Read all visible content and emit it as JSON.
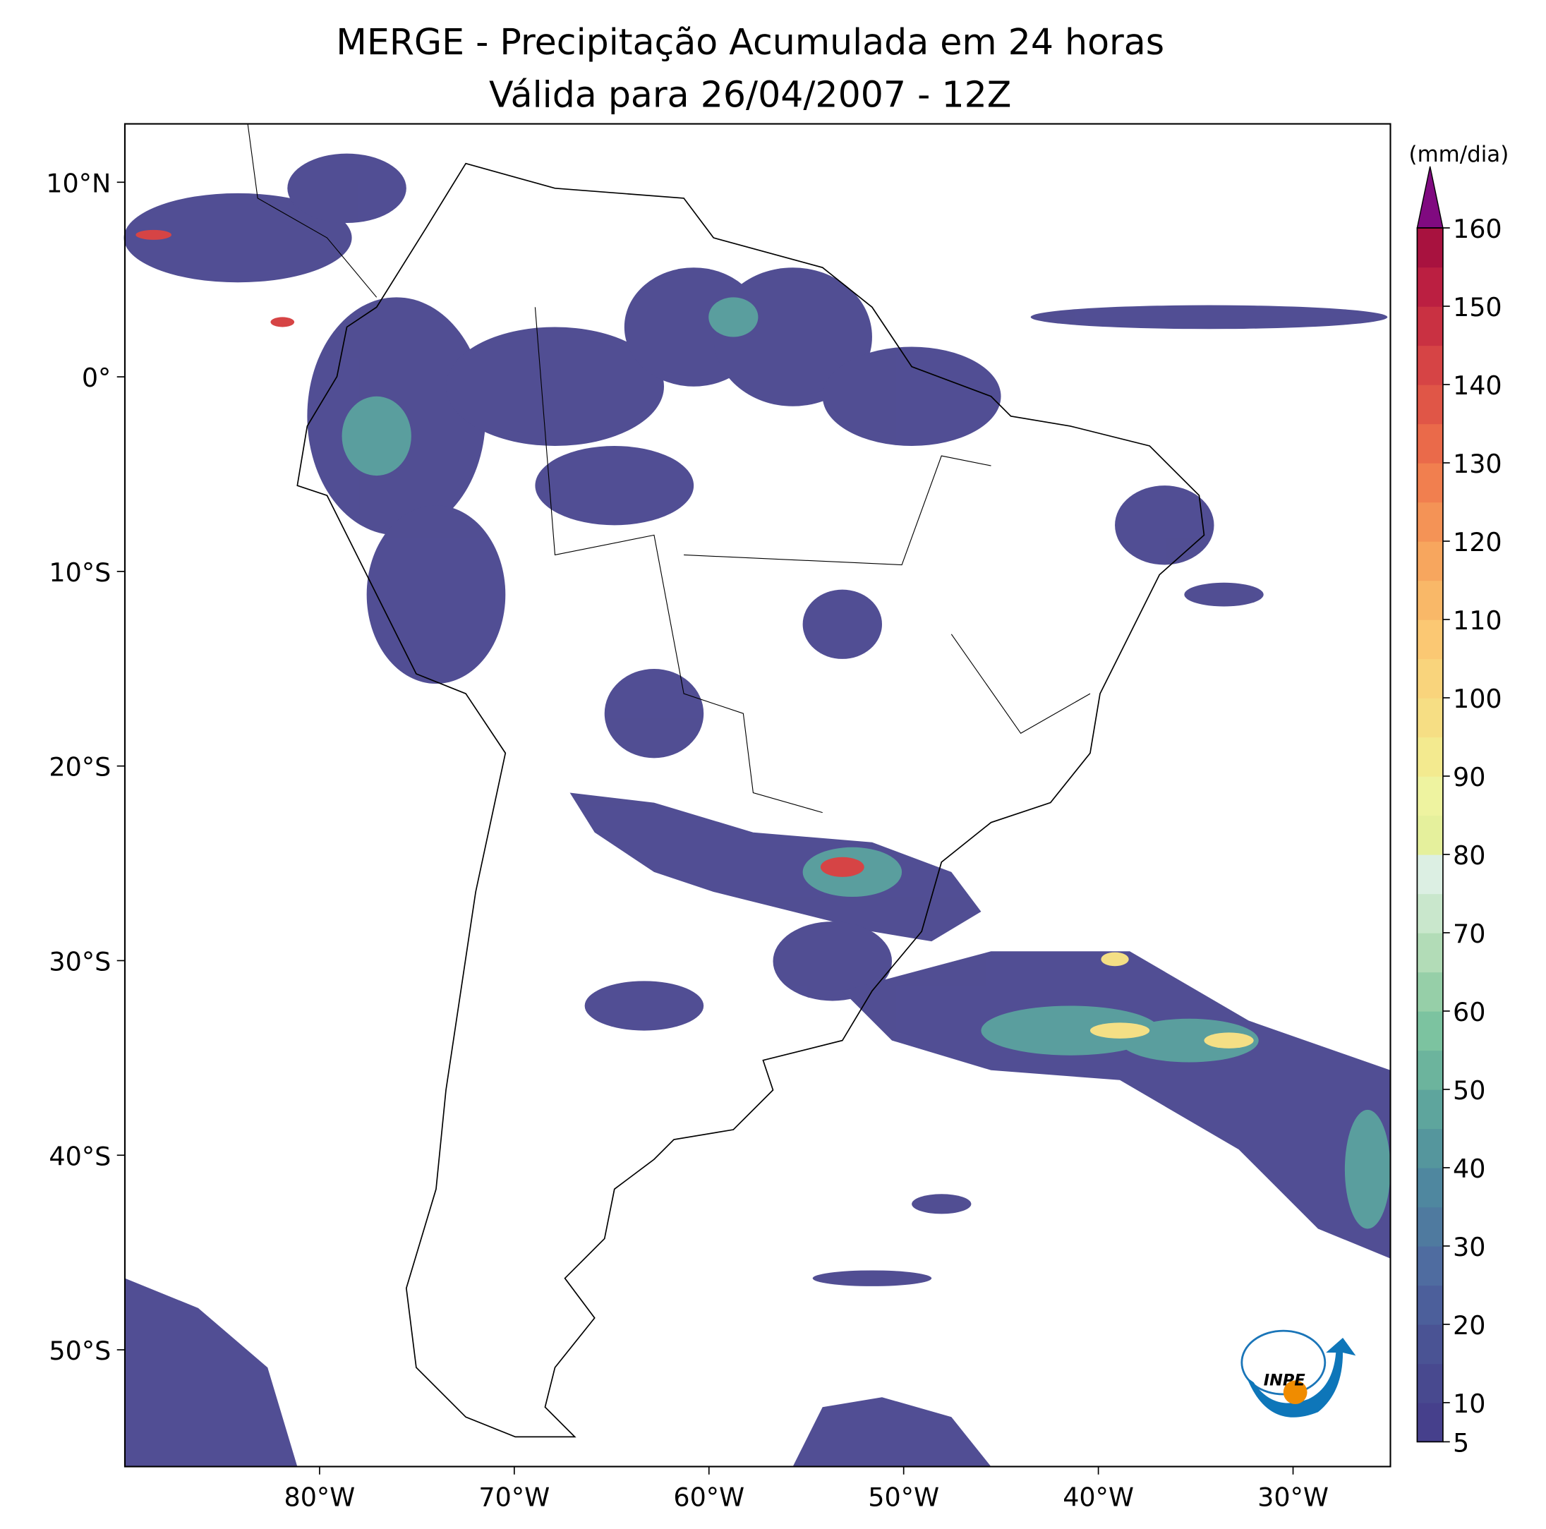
{
  "chart_data": {
    "type": "map",
    "title": "MERGE - Precipitação Acumulada em 24 horas",
    "subtitle": "Válida para 26/04/2007 - 12Z",
    "xlim": [
      -90,
      -25
    ],
    "ylim": [
      -56,
      13
    ],
    "xticks": [
      {
        "value": -80,
        "label": "80°W"
      },
      {
        "value": -70,
        "label": "70°W"
      },
      {
        "value": -60,
        "label": "60°W"
      },
      {
        "value": -50,
        "label": "50°W"
      },
      {
        "value": -40,
        "label": "40°W"
      },
      {
        "value": -30,
        "label": "30°W"
      }
    ],
    "yticks": [
      {
        "value": 10,
        "label": "10°N"
      },
      {
        "value": 0,
        "label": "0°"
      },
      {
        "value": -10,
        "label": "10°S"
      },
      {
        "value": -20,
        "label": "20°S"
      },
      {
        "value": -30,
        "label": "30°S"
      },
      {
        "value": -40,
        "label": "40°S"
      },
      {
        "value": -50,
        "label": "50°S"
      }
    ],
    "colorbar": {
      "label": "(mm/dia)",
      "lim": [
        5,
        160
      ],
      "ticks": [
        5,
        10,
        20,
        30,
        40,
        50,
        60,
        70,
        80,
        90,
        100,
        110,
        120,
        130,
        140,
        150,
        160
      ],
      "colors": [
        "#46408c",
        "#48498f",
        "#4a5394",
        "#4c5f9b",
        "#4f6ca0",
        "#4f7a9f",
        "#4f879f",
        "#55969d",
        "#5ea59d",
        "#6cb49d",
        "#7cc3a0",
        "#96cfa8",
        "#b2dcb7",
        "#c9e7cc",
        "#dcefe3",
        "#e5f09c",
        "#eef3a0",
        "#f3ea8f",
        "#f6de84",
        "#f9d47c",
        "#fbc873",
        "#f9b868",
        "#f7a65e",
        "#f49356",
        "#f17f4f",
        "#ea6a4a",
        "#e05647",
        "#d64445",
        "#c93142",
        "#bb1f41",
        "#a8123f"
      ],
      "extend_color": "#800a80"
    },
    "logo": "INPE"
  }
}
